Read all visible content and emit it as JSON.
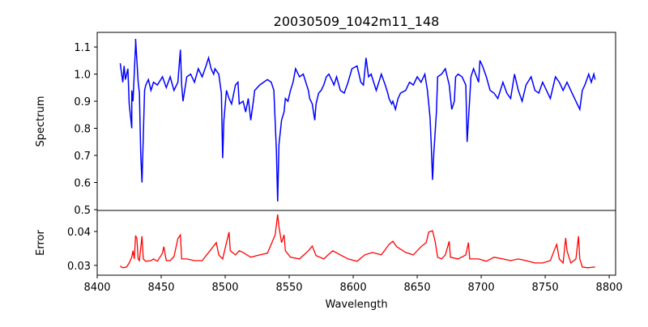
{
  "chart_data": [
    {
      "type": "line",
      "title": "20030509_1042m11_148",
      "xlabel": "",
      "ylabel": "Spectrum",
      "xlim": [
        8400,
        8805
      ],
      "ylim": [
        0.497,
        1.154
      ],
      "yticks": [
        0.5,
        0.6,
        0.7,
        0.8,
        0.9,
        1.0,
        1.1
      ],
      "ytick_labels": [
        "0.5",
        "0.6",
        "0.7",
        "0.8",
        "0.9",
        "1.0",
        "1.1"
      ],
      "series": [
        {
          "name": "Spectrum",
          "color": "#0000ff",
          "x": [
            8418,
            8420,
            8421,
            8422,
            8424,
            8425,
            8427,
            8427,
            8428,
            8430,
            8430,
            8432,
            8433,
            8434,
            8435,
            8437,
            8438,
            8440,
            8442,
            8444,
            8447,
            8451,
            8454,
            8457,
            8460,
            8463,
            8465,
            8466,
            8467,
            8470,
            8473,
            8476,
            8479,
            8482,
            8485,
            8487,
            8489,
            8491,
            8492,
            8495,
            8497,
            8498,
            8499,
            8501,
            8503,
            8505,
            8508,
            8510,
            8511,
            8514,
            8516,
            8518,
            8520,
            8522,
            8523,
            8527,
            8530,
            8533,
            8536,
            8538,
            8540,
            8541,
            8542,
            8544,
            8546,
            8547,
            8549,
            8551,
            8553,
            8555,
            8558,
            8561,
            8565,
            8566,
            8568,
            8570,
            8571,
            8573,
            8575,
            8577,
            8579,
            8581,
            8584,
            8585,
            8587,
            8590,
            8593,
            8596,
            8599,
            8603,
            8606,
            8608,
            8610,
            8612,
            8614,
            8616,
            8618,
            8622,
            8625,
            8627,
            8628,
            8630,
            8631,
            8633,
            8635,
            8637,
            8641,
            8644,
            8647,
            8650,
            8653,
            8656,
            8658,
            8660,
            8661,
            8662,
            8663,
            8665,
            8666,
            8669,
            8672,
            8675,
            8677,
            8679,
            8680,
            8682,
            8685,
            8688,
            8689,
            8691,
            8692,
            8694,
            8698,
            8699,
            8701,
            8704,
            8707,
            8710,
            8713,
            8717,
            8720,
            8723,
            8726,
            8729,
            8732,
            8735,
            8739,
            8742,
            8745,
            8748,
            8751,
            8754,
            8758,
            8761,
            8764,
            8767,
            8770,
            8773,
            8777,
            8779,
            8781,
            8784,
            8786,
            8788,
            8789
          ],
          "y": [
            1.04,
            0.97,
            1.03,
            0.98,
            1.02,
            0.89,
            0.8,
            0.94,
            0.9,
            1.11,
            1.13,
            0.97,
            0.93,
            0.71,
            0.6,
            0.94,
            0.96,
            0.98,
            0.94,
            0.97,
            0.96,
            0.99,
            0.95,
            0.99,
            0.94,
            0.97,
            1.09,
            0.96,
            0.9,
            0.99,
            1.0,
            0.97,
            1.02,
            0.99,
            1.03,
            1.06,
            1.02,
            1.0,
            1.02,
            1.0,
            0.93,
            0.69,
            0.83,
            0.94,
            0.91,
            0.89,
            0.96,
            0.97,
            0.89,
            0.9,
            0.86,
            0.91,
            0.83,
            0.9,
            0.94,
            0.96,
            0.97,
            0.98,
            0.97,
            0.94,
            0.72,
            0.53,
            0.74,
            0.83,
            0.86,
            0.91,
            0.9,
            0.94,
            0.97,
            1.02,
            0.99,
            1.0,
            0.94,
            0.91,
            0.89,
            0.83,
            0.89,
            0.93,
            0.94,
            0.96,
            0.99,
            1.0,
            0.97,
            0.96,
            0.99,
            0.94,
            0.93,
            0.97,
            1.02,
            1.03,
            0.97,
            0.96,
            1.06,
            0.99,
            1.0,
            0.97,
            0.94,
            1.0,
            0.96,
            0.93,
            0.91,
            0.89,
            0.9,
            0.87,
            0.91,
            0.93,
            0.94,
            0.97,
            0.96,
            0.99,
            0.97,
            1.0,
            0.94,
            0.84,
            0.74,
            0.61,
            0.71,
            0.86,
            0.99,
            1.0,
            1.02,
            0.96,
            0.87,
            0.9,
            0.99,
            1.0,
            0.99,
            0.96,
            0.75,
            0.91,
            0.99,
            1.02,
            0.97,
            1.05,
            1.03,
            0.99,
            0.94,
            0.93,
            0.91,
            0.97,
            0.93,
            0.91,
            1.0,
            0.94,
            0.9,
            0.96,
            0.99,
            0.94,
            0.93,
            0.97,
            0.94,
            0.91,
            0.99,
            0.97,
            0.94,
            0.97,
            0.94,
            0.91,
            0.87,
            0.94,
            0.96,
            1.0,
            0.97,
            1.0,
            0.98
          ]
        }
      ]
    },
    {
      "type": "line",
      "xlabel": "Wavelength",
      "ylabel": "Error",
      "xlim": [
        8400,
        8805
      ],
      "ylim": [
        0.0271,
        0.0462
      ],
      "yticks": [
        0.03,
        0.04
      ],
      "ytick_labels": [
        "0.03",
        "0.04"
      ],
      "xticks": [
        8400,
        8450,
        8500,
        8550,
        8600,
        8650,
        8700,
        8750,
        8800
      ],
      "xtick_labels": [
        "8400",
        "8450",
        "8500",
        "8550",
        "8600",
        "8650",
        "8700",
        "8750",
        "8800"
      ],
      "series": [
        {
          "name": "Error",
          "color": "#ff0000",
          "x": [
            8418,
            8420,
            8423,
            8425,
            8427,
            8428,
            8429,
            8430,
            8431,
            8432,
            8433,
            8435,
            8436,
            8438,
            8442,
            8444,
            8447,
            8451,
            8452,
            8454,
            8457,
            8460,
            8463,
            8465,
            8466,
            8470,
            8476,
            8482,
            8493,
            8495,
            8498,
            8501,
            8503,
            8504,
            8508,
            8511,
            8514,
            8520,
            8527,
            8533,
            8539,
            8541,
            8542,
            8544,
            8546,
            8547,
            8551,
            8558,
            8565,
            8568,
            8571,
            8577,
            8584,
            8590,
            8596,
            8603,
            8609,
            8615,
            8622,
            8628,
            8631,
            8634,
            8641,
            8647,
            8653,
            8657,
            8659,
            8662,
            8664,
            8666,
            8669,
            8672,
            8675,
            8676,
            8682,
            8688,
            8690,
            8691,
            8698,
            8704,
            8710,
            8717,
            8723,
            8729,
            8735,
            8742,
            8748,
            8754,
            8757,
            8759,
            8761,
            8764,
            8766,
            8767,
            8770,
            8774,
            8776,
            8777,
            8779,
            8783,
            8789
          ],
          "y": [
            0.0298,
            0.0293,
            0.0295,
            0.0307,
            0.0324,
            0.0343,
            0.0319,
            0.0388,
            0.0379,
            0.0319,
            0.0314,
            0.0386,
            0.0319,
            0.0312,
            0.0314,
            0.0319,
            0.0312,
            0.0336,
            0.0355,
            0.0314,
            0.0314,
            0.0326,
            0.0379,
            0.039,
            0.0319,
            0.0319,
            0.0314,
            0.0314,
            0.0367,
            0.0331,
            0.0319,
            0.0367,
            0.0398,
            0.0343,
            0.0331,
            0.0343,
            0.0338,
            0.0324,
            0.0331,
            0.0336,
            0.039,
            0.045,
            0.0414,
            0.0367,
            0.039,
            0.0343,
            0.0324,
            0.0319,
            0.0343,
            0.0357,
            0.0329,
            0.0319,
            0.0343,
            0.0331,
            0.0319,
            0.0312,
            0.0331,
            0.0338,
            0.0331,
            0.0362,
            0.0371,
            0.0355,
            0.0338,
            0.0331,
            0.0355,
            0.0367,
            0.0398,
            0.0402,
            0.0371,
            0.0324,
            0.0319,
            0.0331,
            0.0371,
            0.0324,
            0.0319,
            0.0331,
            0.0367,
            0.0319,
            0.0319,
            0.0312,
            0.0324,
            0.0319,
            0.0314,
            0.0319,
            0.0314,
            0.0307,
            0.0307,
            0.0314,
            0.0343,
            0.0362,
            0.0319,
            0.0307,
            0.0381,
            0.0343,
            0.0307,
            0.0319,
            0.0386,
            0.0319,
            0.0295,
            0.0293,
            0.0295
          ]
        }
      ]
    }
  ]
}
